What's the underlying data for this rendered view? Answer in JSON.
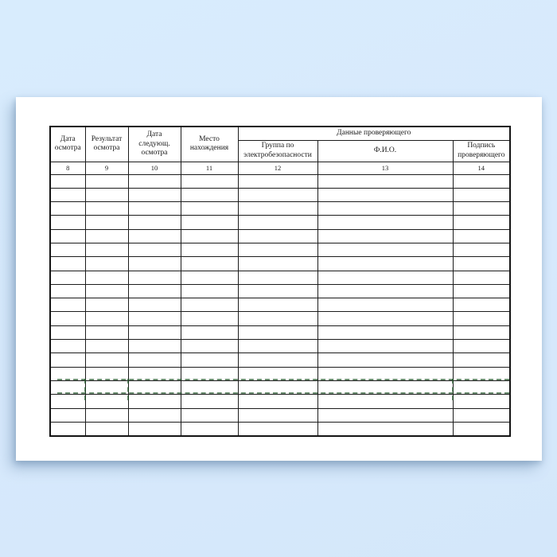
{
  "table": {
    "group_header": "Данные проверяющего",
    "columns": [
      {
        "label": "Дата\nосмотра",
        "number": "8"
      },
      {
        "label": "Результат\nосмотра",
        "number": "9"
      },
      {
        "label": "Дата\nследующ.\nосмотра",
        "number": "10"
      },
      {
        "label": "Место\nнахождения",
        "number": "11"
      },
      {
        "label": "Группа по\nэлектробезопасности",
        "number": "12"
      },
      {
        "label": "Ф.И.О.",
        "number": "13"
      },
      {
        "label": "Подпись\nпроверяющего",
        "number": "14"
      }
    ],
    "empty_row_count": 19
  },
  "colors": {
    "background": "#d7e9fc",
    "paper": "#ffffff",
    "grid_border": "#1c1c1c",
    "artifact_green": "#1e5426"
  }
}
